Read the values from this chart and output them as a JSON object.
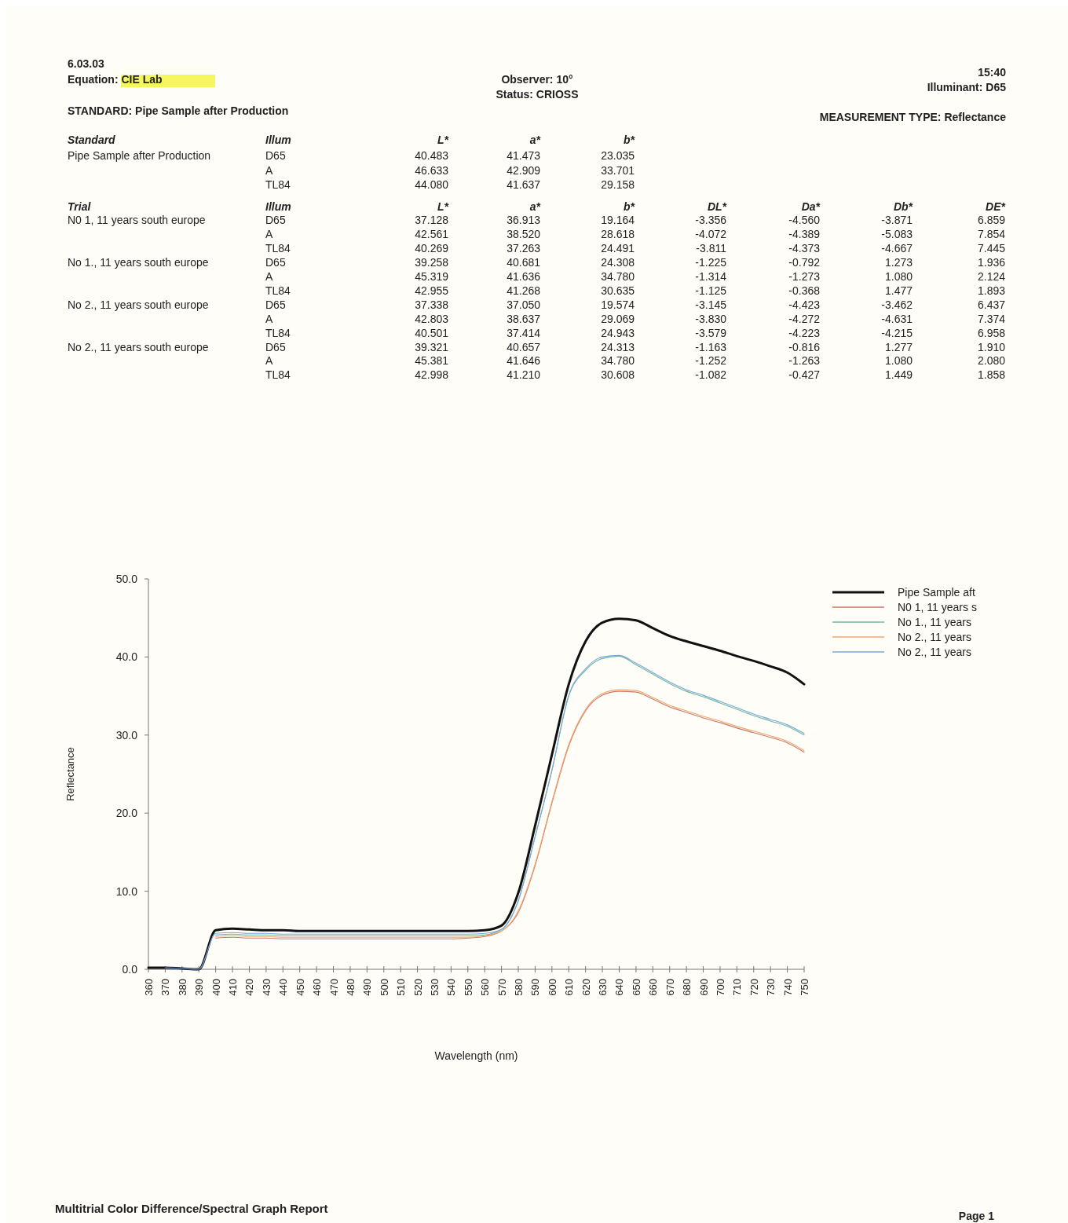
{
  "chart_data": {
    "type": "line",
    "title": "Multitrial Color Difference/Spectral Graph Report",
    "xlabel": "Wavelength (nm)",
    "ylabel": "Reflectance",
    "annotations": [
      "6.03.03",
      "Equation: CIE Lab",
      "STANDARD: Pipe Sample after Production",
      "Observer: 10°",
      "Status: CRIOSS",
      "15:40",
      "Illuminant: D65",
      "MEASUREMENT TYPE: Reflectance",
      "Page 1",
      "Standard\tIllum\tL*\ta*\tb*",
      "Pipe Sample after Production\tD65\t40.483\t41.473\t23.035",
      "\tA\t46.633\t42.909\t33.701",
      "\tTL84\t44.080\t41.637\t29.158",
      "Trial\tIllum\tL*\ta*\tb*\tDL*\tDa*\tDb*\tDE*",
      "N0 1, 11 years south europe\tD65\t37.128\t36.913\t19.164\t-3.356\t-4.560\t-3.871\t6.859",
      "\tA\t42.561\t38.520\t28.618\t-4.072\t-4.389\t-5.083\t7.854",
      "\tTL84\t40.269\t37.263\t24.491\t-3.811\t-4.373\t-4.667\t7.445",
      "No 1., 11 years south europe\tD65\t39.258\t40.681\t24.308\t-1.225\t-0.792\t1.273\t1.936",
      "\tA\t45.319\t41.636\t34.780\t-1.314\t-1.273\t1.080\t2.124",
      "\tTL84\t42.955\t41.268\t30.635\t-1.125\t-0.368\t1.477\t1.893",
      "No 2., 11 years south europe\tD65\t37.338\t37.050\t19.574\t-3.145\t-4.423\t-3.462\t6.437",
      "\tA\t42.803\t38.637\t29.069\t-3.830\t-4.272\t-4.631\t7.374",
      "\tTL84\t40.501\t37.414\t24.943\t-3.579\t-4.223\t-4.215\t6.958",
      "No 2., 11 years south europe\tD65\t39.321\t40.657\t24.313\t-1.163\t-0.816\t1.277\t1.910",
      "\tA\t45.381\t41.646\t34.780\t-1.252\t-1.263\t1.080\t2.080",
      "\tTL84\t42.998\t41.210\t30.608\t-1.082\t-0.427\t1.449\t1.858"
    ],
    "x": [
      360,
      370,
      380,
      390,
      400,
      410,
      420,
      430,
      440,
      450,
      460,
      470,
      480,
      490,
      500,
      510,
      520,
      530,
      540,
      550,
      560,
      570,
      580,
      590,
      600,
      610,
      620,
      630,
      640,
      650,
      660,
      670,
      680,
      690,
      700,
      710,
      720,
      730,
      740,
      750
    ],
    "xlim": [
      360,
      750
    ],
    "xticks": [
      360,
      370,
      380,
      390,
      400,
      410,
      420,
      430,
      440,
      450,
      460,
      470,
      480,
      490,
      500,
      510,
      520,
      530,
      540,
      550,
      560,
      570,
      580,
      590,
      600,
      610,
      620,
      630,
      640,
      650,
      660,
      670,
      680,
      690,
      700,
      710,
      720,
      730,
      740,
      750
    ],
    "ylim": [
      0,
      50
    ],
    "yticks": [
      {
        "value": 0,
        "label": "0.0"
      },
      {
        "value": 10,
        "label": "10.0"
      },
      {
        "value": 20,
        "label": "20.0"
      },
      {
        "value": 30,
        "label": "30.0"
      },
      {
        "value": 40,
        "label": "40.0"
      },
      {
        "value": 50,
        "label": "50.0"
      }
    ],
    "legend": "top right",
    "marker": "none",
    "line_style": "solid",
    "series": [
      {
        "name": "Pipe Sample aft",
        "color": "#111111",
        "values": [
          0.2,
          0.2,
          0.1,
          0.0,
          5.0,
          5.2,
          5.1,
          5.0,
          5.0,
          4.9,
          4.9,
          4.9,
          4.9,
          4.9,
          4.9,
          4.9,
          4.9,
          4.9,
          4.9,
          4.9,
          5.0,
          5.6,
          9.8,
          18.4,
          27.5,
          36.5,
          42.0,
          44.4,
          44.9,
          44.7,
          43.7,
          42.7,
          42.0,
          41.4,
          40.8,
          40.1,
          39.5,
          38.8,
          38.0,
          36.5
        ]
      },
      {
        "name": "N0 1, 11 years s",
        "color": "#c97a66",
        "values": [
          null,
          null,
          null,
          null,
          4.0,
          4.1,
          4.0,
          4.0,
          3.9,
          3.9,
          3.9,
          3.9,
          3.9,
          3.9,
          3.9,
          3.9,
          3.9,
          3.9,
          3.9,
          4.0,
          4.2,
          4.9,
          7.3,
          13.3,
          21.3,
          28.6,
          33.1,
          35.1,
          35.6,
          35.5,
          34.6,
          33.6,
          32.9,
          32.2,
          31.6,
          30.9,
          30.3,
          29.7,
          29.0,
          27.8
        ]
      },
      {
        "name": "No 1., 11 years",
        "color": "#6fb8a0",
        "values": [
          null,
          null,
          null,
          null,
          4.4,
          4.5,
          4.4,
          4.4,
          4.3,
          4.3,
          4.3,
          4.3,
          4.3,
          4.3,
          4.3,
          4.3,
          4.3,
          4.3,
          4.3,
          4.3,
          4.4,
          5.1,
          8.8,
          17.0,
          25.5,
          35.0,
          38.3,
          39.8,
          40.1,
          39.0,
          37.8,
          36.6,
          35.6,
          34.9,
          34.1,
          33.3,
          32.5,
          31.8,
          31.1,
          30.0
        ]
      },
      {
        "name": "No 2., 11 years",
        "color": "#eda870",
        "values": [
          null,
          null,
          null,
          null,
          4.2,
          4.3,
          4.2,
          4.2,
          4.1,
          4.1,
          4.1,
          4.1,
          4.1,
          4.1,
          4.1,
          4.1,
          4.1,
          4.1,
          4.1,
          4.1,
          4.3,
          4.9,
          7.5,
          13.5,
          21.5,
          28.8,
          33.3,
          35.3,
          35.8,
          35.7,
          34.8,
          33.8,
          33.1,
          32.4,
          31.8,
          31.1,
          30.5,
          29.9,
          29.2,
          28.0
        ]
      },
      {
        "name": "No 2., 11 years",
        "color": "#7aa6dc",
        "values": [
          null,
          0.2,
          0.1,
          0.0,
          4.6,
          4.7,
          4.6,
          4.6,
          4.5,
          4.5,
          4.5,
          4.5,
          4.5,
          4.5,
          4.5,
          4.5,
          4.5,
          4.5,
          4.5,
          4.5,
          4.6,
          5.1,
          8.8,
          17.0,
          25.5,
          35.1,
          38.5,
          40.0,
          40.2,
          39.2,
          38.0,
          36.8,
          35.8,
          35.1,
          34.3,
          33.5,
          32.7,
          32.0,
          31.3,
          30.2
        ]
      }
    ]
  }
}
